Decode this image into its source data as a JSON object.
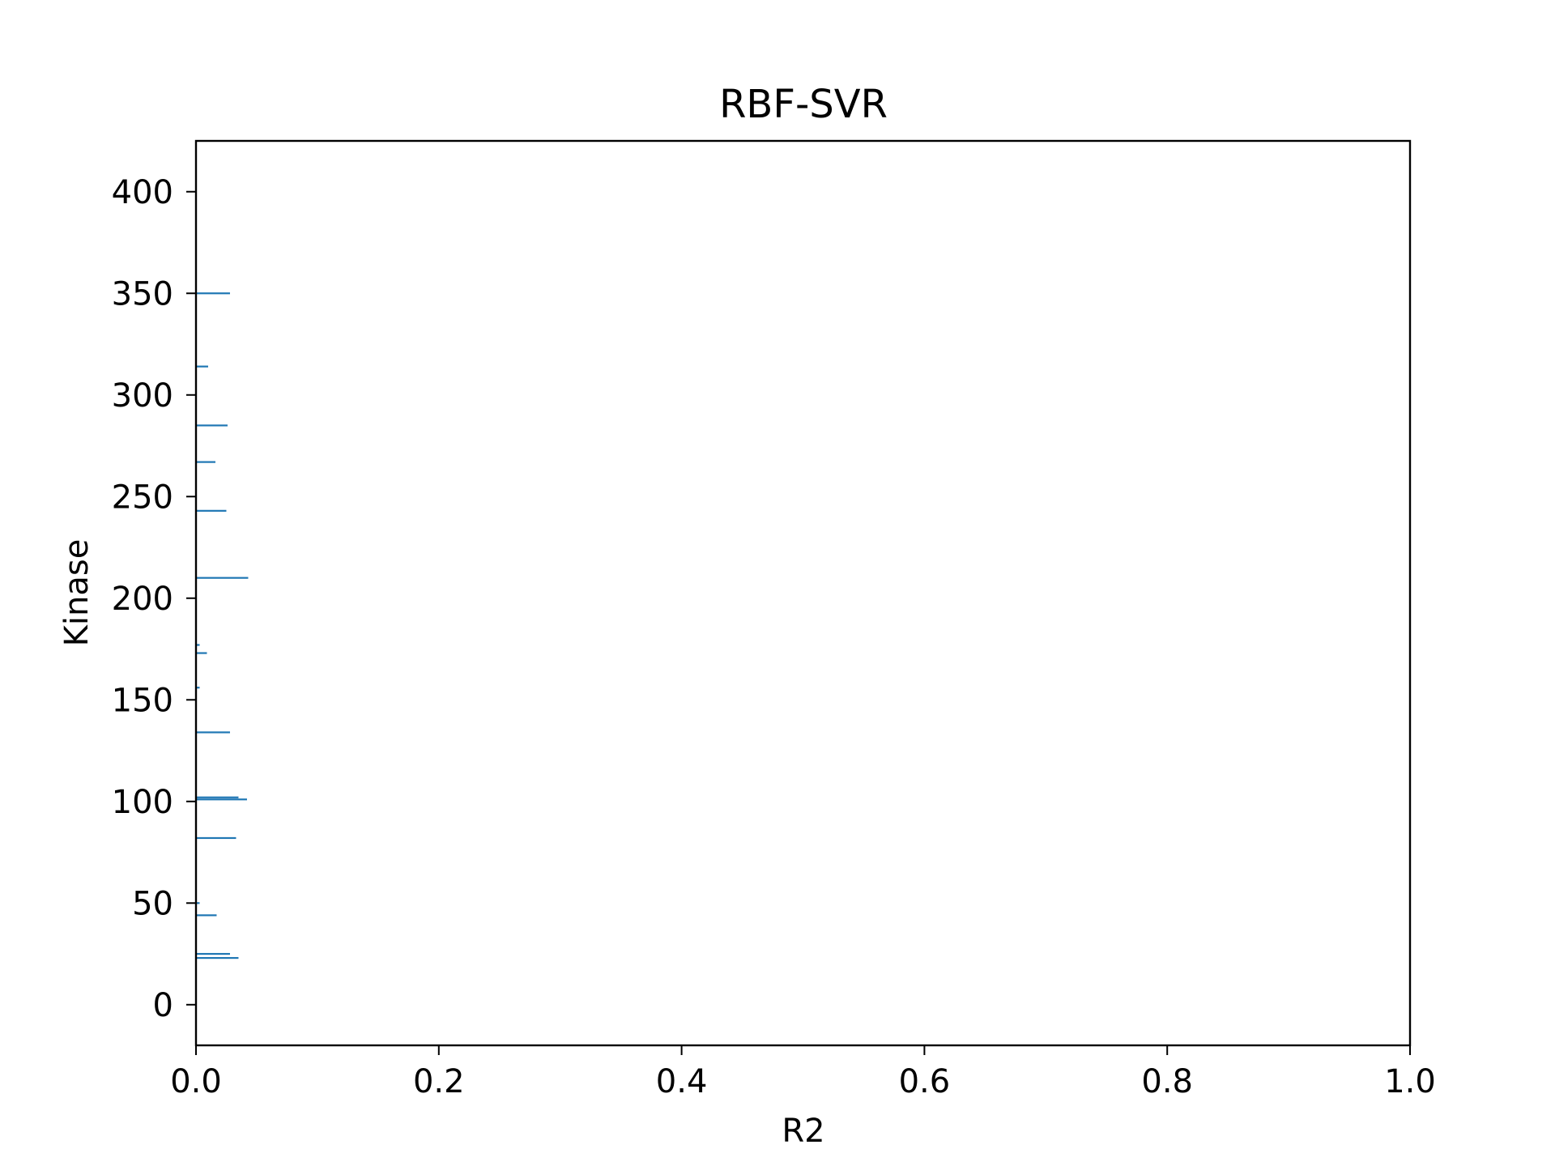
{
  "chart_data": {
    "type": "bar",
    "orientation": "horizontal",
    "title": "RBF-SVR",
    "xlabel": "R2",
    "ylabel": "Kinase",
    "xlim": [
      0.0,
      1.0
    ],
    "ylim": [
      -20,
      425
    ],
    "xticks": [
      "0.0",
      "0.2",
      "0.4",
      "0.6",
      "0.8",
      "1.0"
    ],
    "xtick_values": [
      0.0,
      0.2,
      0.4,
      0.6,
      0.8,
      1.0
    ],
    "yticks": [
      "0",
      "50",
      "100",
      "150",
      "200",
      "250",
      "300",
      "350",
      "400"
    ],
    "ytick_values": [
      0,
      50,
      100,
      150,
      200,
      250,
      300,
      350,
      400
    ],
    "bar_color": "#1f77b4",
    "grid": false,
    "categories": [
      23,
      25,
      44,
      50,
      82,
      101,
      102,
      134,
      156,
      173,
      177,
      210,
      243,
      267,
      285,
      314,
      350
    ],
    "values": [
      0.035,
      0.028,
      0.017,
      0.003,
      0.033,
      0.042,
      0.035,
      0.028,
      0.003,
      0.009,
      0.003,
      0.043,
      0.025,
      0.016,
      0.026,
      0.01,
      0.028
    ]
  }
}
